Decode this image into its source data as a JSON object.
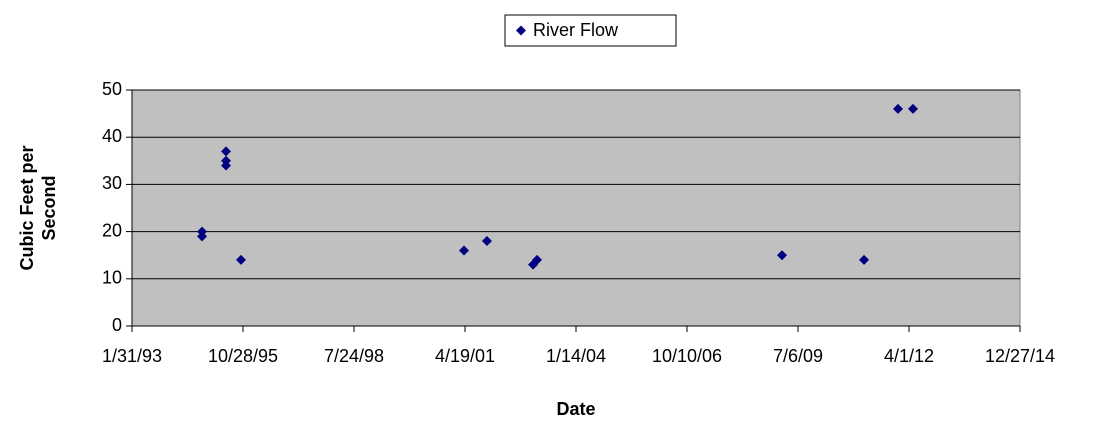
{
  "chart_data": {
    "type": "scatter",
    "xlabel": "Date",
    "ylabel": "Cubic Feet per Second",
    "series": [
      {
        "name": "River Flow",
        "color": "#000080",
        "x": [
          34630,
          34630,
          34846,
          34846,
          34846,
          34981,
          36990,
          37197,
          37612,
          37648,
          39855,
          40594,
          40900,
          41035
        ],
        "values": [
          20,
          19,
          37,
          35,
          34,
          14,
          16,
          18,
          13,
          14,
          15,
          14,
          46,
          46
        ]
      }
    ],
    "xlim": [
      33999,
      41999
    ],
    "xticks": [
      {
        "value": 33999,
        "label": "1/31/93"
      },
      {
        "value": 34999,
        "label": "10/28/95"
      },
      {
        "value": 35999,
        "label": "7/24/98"
      },
      {
        "value": 36999,
        "label": "4/19/01"
      },
      {
        "value": 37999,
        "label": "1/14/04"
      },
      {
        "value": 38999,
        "label": "10/10/06"
      },
      {
        "value": 39999,
        "label": "7/6/09"
      },
      {
        "value": 40999,
        "label": "4/1/12"
      },
      {
        "value": 41999,
        "label": "12/27/14"
      }
    ],
    "ylim": [
      0,
      50
    ],
    "yticks": [
      0,
      10,
      20,
      30,
      40,
      50
    ],
    "grid": true,
    "legend": "top"
  }
}
